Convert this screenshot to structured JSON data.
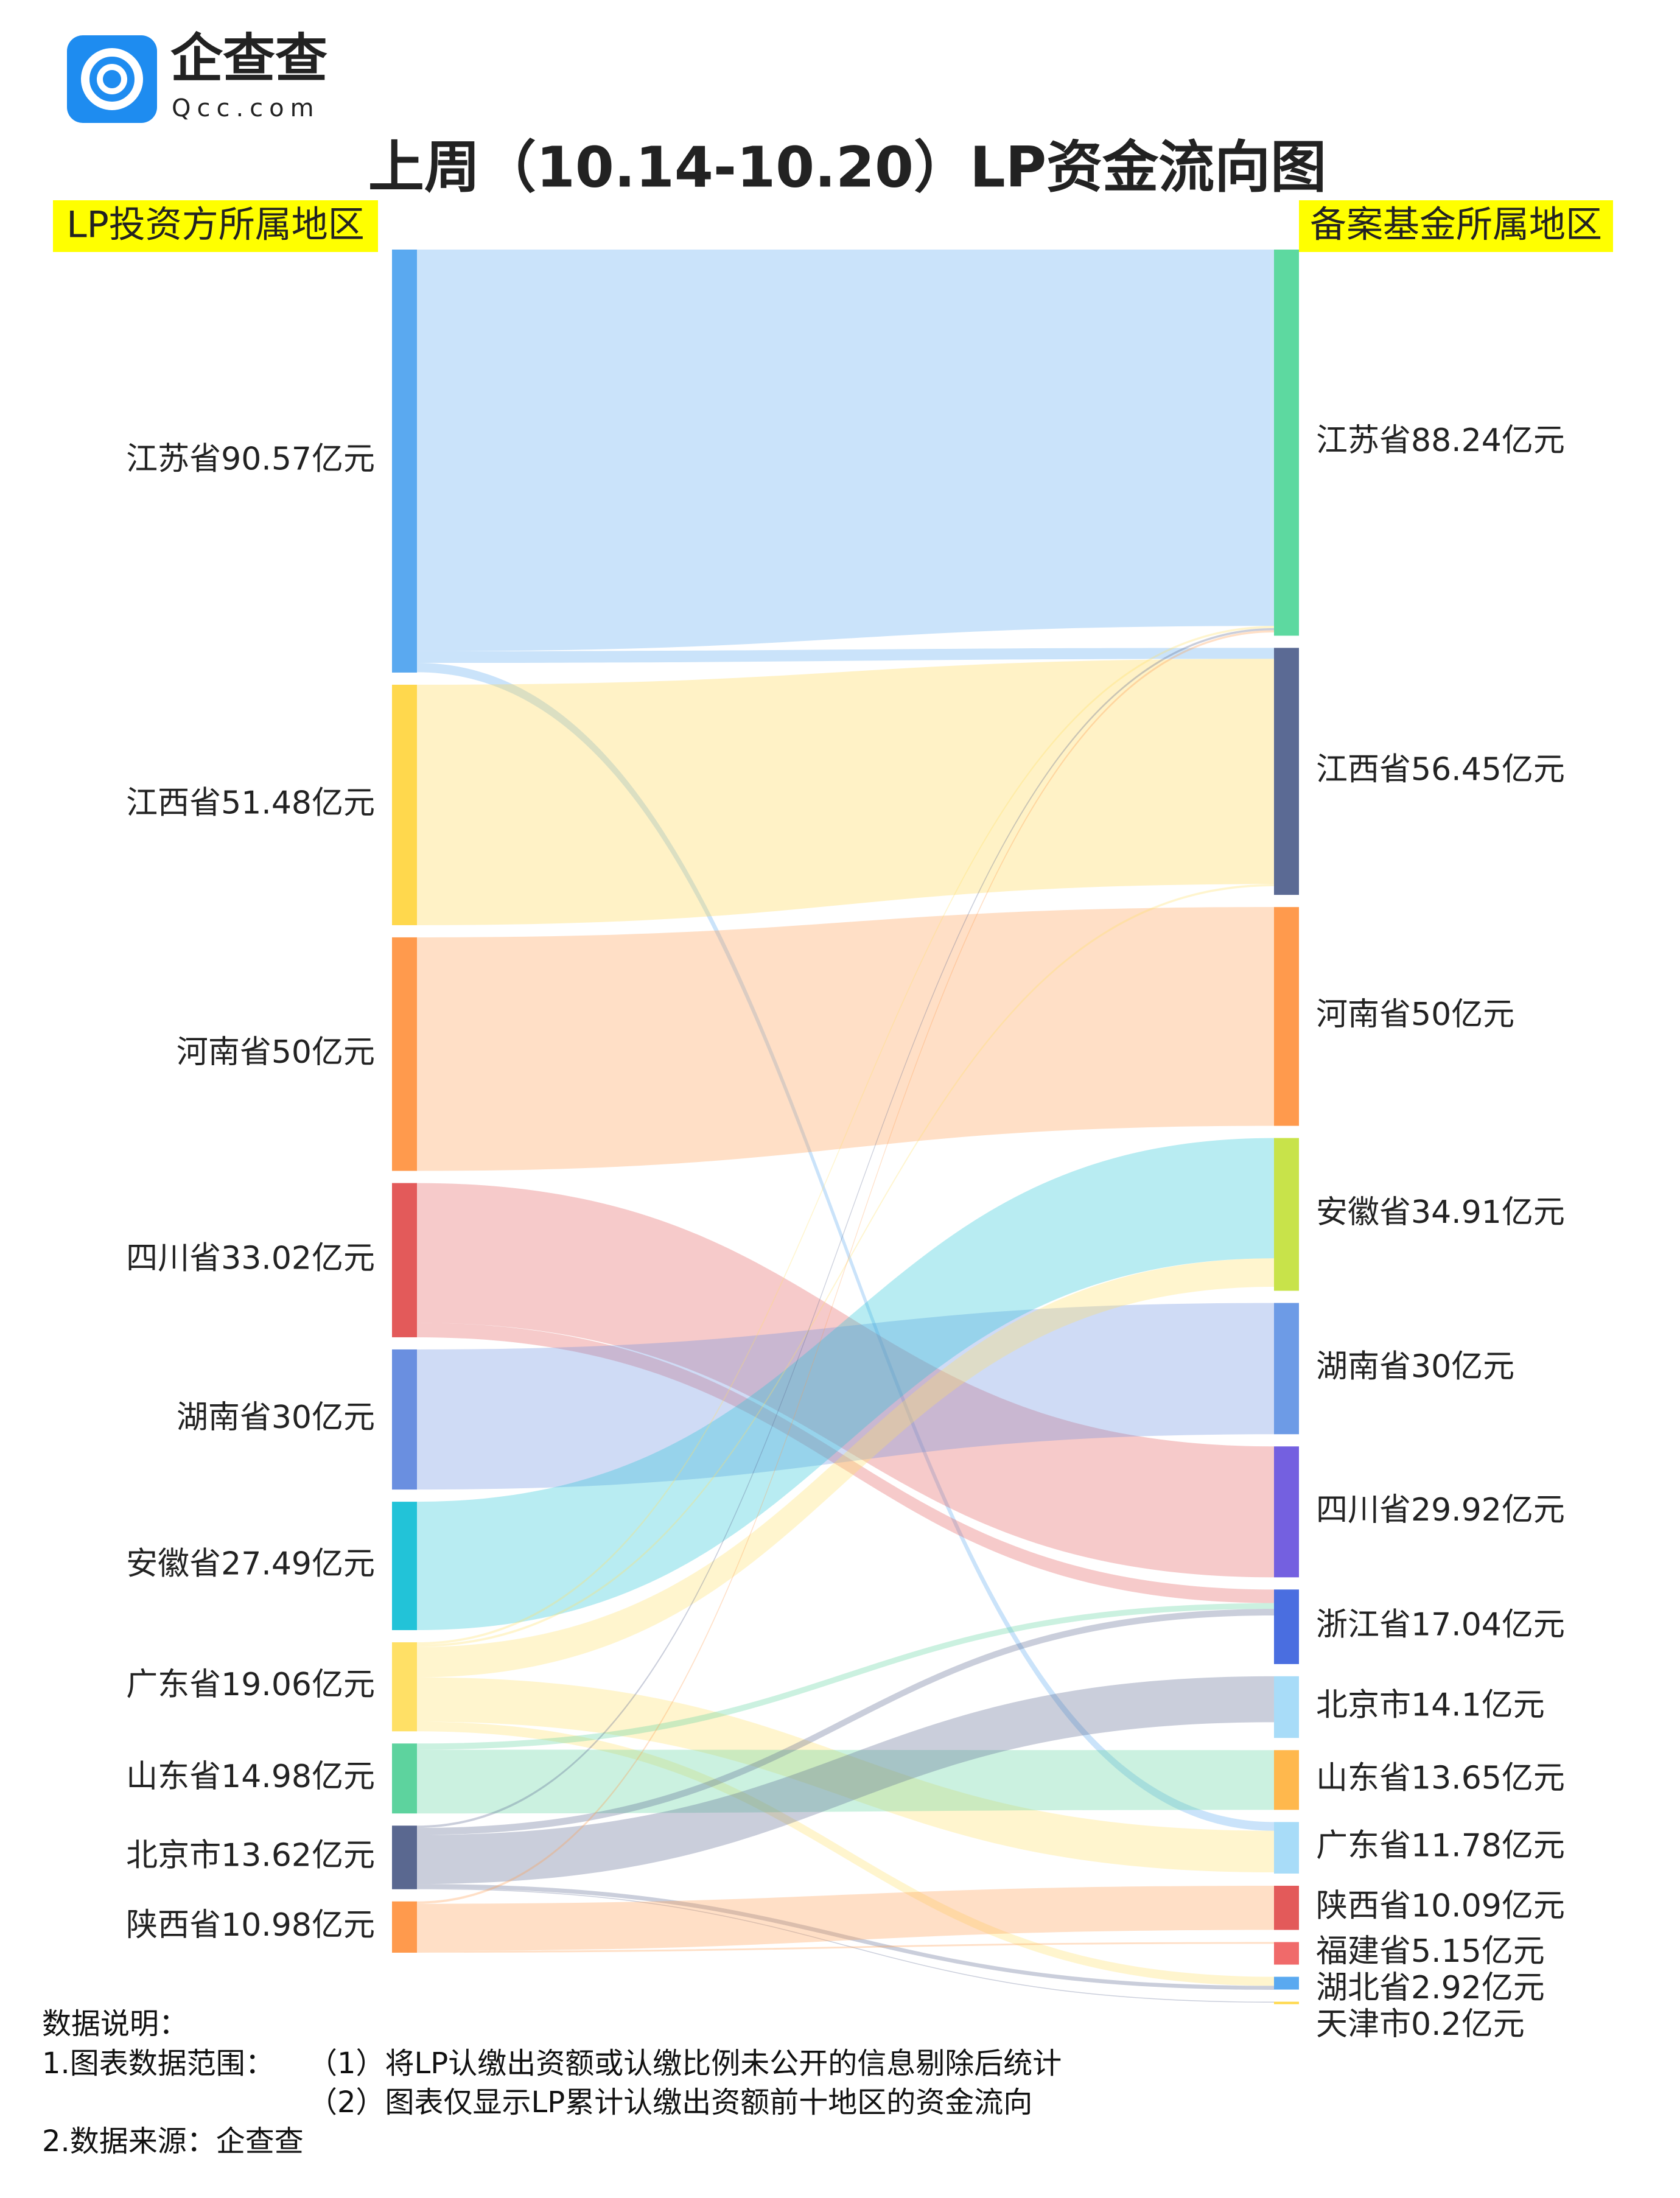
{
  "header": {
    "logo_name": "企查查",
    "logo_domain": "Qcc.com",
    "title": "上周（10.14-10.20）LP资金流向图"
  },
  "chart_data": {
    "type": "sankey",
    "left_heading": "LP投资方所属地区",
    "right_heading": "备案基金所属地区",
    "sources": {
      "labels": [
        "江苏省90.57亿元",
        "江西省51.48亿元",
        "河南省50亿元",
        "四川省33.02亿元",
        "湖南省30亿元",
        "安徽省27.49亿元",
        "广东省19.06亿元",
        "山东省14.98亿元",
        "北京市13.62亿元",
        "陕西省10.98亿元"
      ],
      "values": [
        90.57,
        51.48,
        50,
        33.02,
        30,
        27.49,
        19.06,
        14.98,
        13.62,
        10.98
      ],
      "colors": [
        "#5aa9f0",
        "#ffd84d",
        "#ff9a4d",
        "#e35a5a",
        "#6a8fe0",
        "#22c3d8",
        "#ffe066",
        "#5dd39e",
        "#5a6890",
        "#ff9a4d"
      ]
    },
    "targets": {
      "labels": [
        "江苏省88.24亿元",
        "江西省56.45亿元",
        "河南省50亿元",
        "安徽省34.91亿元",
        "湖南省30亿元",
        "四川省29.92亿元",
        "浙江省17.04亿元",
        "北京市14.1亿元",
        "山东省13.65亿元",
        "广东省11.78亿元",
        "陕西省10.09亿元",
        "福建省5.15亿元",
        "湖北省2.92亿元",
        "天津市0.2亿元"
      ],
      "values": [
        88.24,
        56.45,
        50,
        34.91,
        30,
        29.92,
        17.04,
        14.1,
        13.65,
        11.78,
        10.09,
        5.15,
        2.92,
        0.2
      ],
      "colors": [
        "#5dd9a0",
        "#5b6a94",
        "#ff9a4d",
        "#c8e34a",
        "#6d9be6",
        "#7460e0",
        "#4a6ee0",
        "#a8dcf8",
        "#ffb84d",
        "#a8dcf8",
        "#e35a5a",
        "#f06a6a",
        "#5aa9f0",
        "#ffd84d"
      ]
    },
    "links": [
      {
        "source": 0,
        "target": 0,
        "value": 86
      },
      {
        "source": 0,
        "target": 1,
        "value": 2.5
      },
      {
        "source": 0,
        "target": 9,
        "value": 2
      },
      {
        "source": 1,
        "target": 1,
        "value": 51.48
      },
      {
        "source": 2,
        "target": 2,
        "value": 50
      },
      {
        "source": 3,
        "target": 5,
        "value": 29.92
      },
      {
        "source": 3,
        "target": 6,
        "value": 3.1
      },
      {
        "source": 4,
        "target": 4,
        "value": 30
      },
      {
        "source": 5,
        "target": 3,
        "value": 27.49
      },
      {
        "source": 6,
        "target": 0,
        "value": 0.5
      },
      {
        "source": 6,
        "target": 1,
        "value": 0.5
      },
      {
        "source": 6,
        "target": 3,
        "value": 6.5
      },
      {
        "source": 6,
        "target": 9,
        "value": 9.5
      },
      {
        "source": 6,
        "target": 12,
        "value": 2.06
      },
      {
        "source": 7,
        "target": 6,
        "value": 1.33
      },
      {
        "source": 7,
        "target": 8,
        "value": 13.65
      },
      {
        "source": 8,
        "target": 0,
        "value": 0.5
      },
      {
        "source": 8,
        "target": 6,
        "value": 1.5
      },
      {
        "source": 8,
        "target": 7,
        "value": 10.5
      },
      {
        "source": 8,
        "target": 12,
        "value": 0.92
      },
      {
        "source": 8,
        "target": 13,
        "value": 0.2
      },
      {
        "source": 9,
        "target": 0,
        "value": 0.5
      },
      {
        "source": 9,
        "target": 10,
        "value": 10.09
      },
      {
        "source": 9,
        "target": 11,
        "value": 0.39
      }
    ]
  },
  "notes": {
    "heading": "数据说明：",
    "scope_label": "1.图表数据范围：",
    "scope_1": "（1）将LP认缴出资额或认缴比例未公开的信息剔除后统计",
    "scope_2": "（2）图表仅显示LP累计认缴出资额前十地区的资金流向",
    "source": "2.数据来源：企查查"
  }
}
